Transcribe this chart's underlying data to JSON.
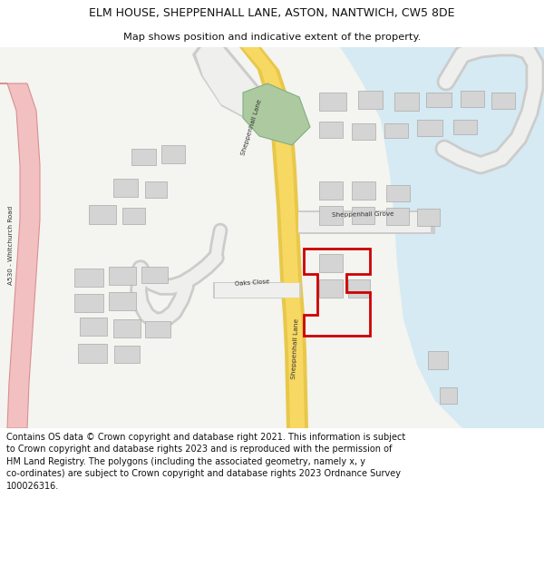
{
  "title_line1": "ELM HOUSE, SHEPPENHALL LANE, ASTON, NANTWICH, CW5 8DE",
  "title_line2": "Map shows position and indicative extent of the property.",
  "footer": "Contains OS data © Crown copyright and database right 2021. This information is subject\nto Crown copyright and database rights 2023 and is reproduced with the permission of\nHM Land Registry. The polygons (including the associated geometry, namely x, y\nco-ordinates) are subject to Crown copyright and database rights 2023 Ordnance Survey\n100026316.",
  "bg_color": "#ffffff",
  "map_bg": "#f4f4f0",
  "road_yellow": "#f7d862",
  "road_border": "#e8c84a",
  "road_gray": "#cccccc",
  "road_inner": "#efefed",
  "building_fill": "#d4d4d4",
  "building_stroke": "#aaaaaa",
  "green_fill": "#adc9a0",
  "light_blue": "#d5eaf2",
  "red_outline": "#cc0000",
  "pink_road_fill": "#f2c0c0",
  "pink_road_edge": "#d89090",
  "title_fontsize": 9.0,
  "subtitle_fontsize": 8.2,
  "footer_fontsize": 7.0,
  "label_fontsize": 5.2
}
